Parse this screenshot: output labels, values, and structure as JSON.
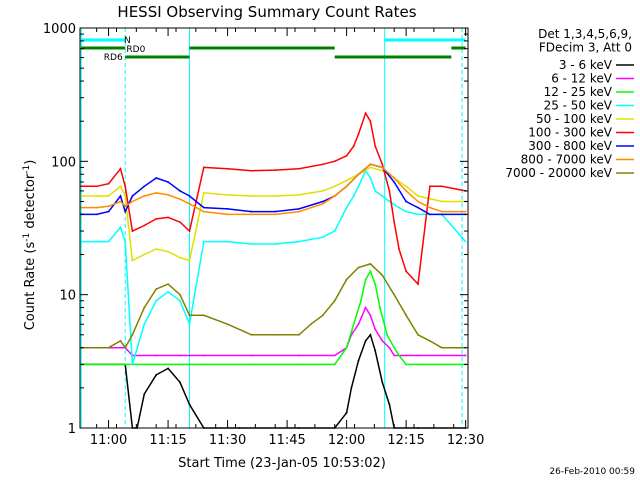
{
  "chart_data": {
    "type": "line",
    "title": "HESSI Observing Summary Count Rates",
    "xlabel": "Start Time (23-Jan-05 10:53:02)",
    "ylabel_main": "Count Rate (s",
    "ylabel_sup1": "-1",
    "ylabel_mid": " detector",
    "ylabel_sup2": "-1",
    "ylabel_end": ")",
    "footer_date": "26-Feb-2010 00:59",
    "y_scale": "log",
    "ylim": [
      1,
      1000
    ],
    "xlim_minutes": [
      10.88,
      12.51
    ],
    "x_ticks": [
      {
        "hour": 11.0,
        "label": "11:00"
      },
      {
        "hour": 11.25,
        "label": "11:15"
      },
      {
        "hour": 11.5,
        "label": "11:30"
      },
      {
        "hour": 11.75,
        "label": "11:45"
      },
      {
        "hour": 12.0,
        "label": "12:00"
      },
      {
        "hour": 12.25,
        "label": "12:15"
      },
      {
        "hour": 12.5,
        "label": "12:30"
      }
    ],
    "y_ticks": [
      {
        "value": 1,
        "label": "1"
      },
      {
        "value": 10,
        "label": "10"
      },
      {
        "value": 100,
        "label": "100"
      },
      {
        "value": 1000,
        "label": "1000"
      }
    ],
    "legend_header": [
      "Det 1,3,4,5,6,9,",
      "FDecim 3, Att 0"
    ],
    "series": [
      {
        "name": "3 - 6 keV",
        "color": "#000000",
        "x": [
          10.885,
          10.92,
          11.0,
          11.04,
          11.07,
          11.1,
          11.12,
          11.15,
          11.2,
          11.25,
          11.3,
          11.34,
          11.4,
          11.55,
          11.8,
          11.95,
          12.0,
          12.02,
          12.05,
          12.08,
          12.1,
          12.12,
          12.15,
          12.18,
          12.2,
          12.3,
          12.5
        ],
        "y": [
          3,
          3,
          3,
          3,
          3,
          1,
          1,
          1.8,
          2.5,
          2.8,
          2.2,
          1.5,
          1,
          1,
          1,
          1,
          1.3,
          2,
          3.2,
          4.5,
          5,
          3.8,
          2.2,
          1.5,
          1,
          1,
          1
        ]
      },
      {
        "name": "6 - 12 keV",
        "color": "#ff00ff",
        "x": [
          10.885,
          11.0,
          11.07,
          11.1,
          11.2,
          11.3,
          11.34,
          11.4,
          11.6,
          11.8,
          11.95,
          12.0,
          12.02,
          12.05,
          12.08,
          12.1,
          12.12,
          12.15,
          12.18,
          12.2,
          12.25,
          12.3,
          12.5
        ],
        "y": [
          4,
          4,
          4,
          3.5,
          3.5,
          3.5,
          3.5,
          3.5,
          3.5,
          3.5,
          3.5,
          4,
          5,
          6,
          8,
          7,
          5.5,
          4.5,
          4,
          3.5,
          3.5,
          3.5,
          3.5
        ]
      },
      {
        "name": "12 - 25 keV",
        "color": "#00ff00",
        "x": [
          10.885,
          11.0,
          11.07,
          11.1,
          11.15,
          11.2,
          11.25,
          11.3,
          11.34,
          11.4,
          11.6,
          11.8,
          11.9,
          11.95,
          12.0,
          12.03,
          12.06,
          12.08,
          12.1,
          12.12,
          12.14,
          12.17,
          12.2,
          12.22,
          12.25,
          12.3,
          12.5
        ],
        "y": [
          3,
          3,
          3,
          3,
          3,
          3,
          3,
          3,
          3,
          3,
          3,
          3,
          3,
          3,
          4,
          6,
          9,
          13,
          15,
          12,
          8,
          5,
          4,
          3.5,
          3,
          3,
          3
        ]
      },
      {
        "name": "25 - 50 keV",
        "color": "#00ffff",
        "x": [
          10.885,
          10.95,
          11.0,
          11.05,
          11.07,
          11.1,
          11.15,
          11.2,
          11.25,
          11.3,
          11.34,
          11.4,
          11.5,
          11.6,
          11.7,
          11.8,
          11.9,
          11.95,
          12.0,
          12.03,
          12.05,
          12.08,
          12.1,
          12.12,
          12.15,
          12.18,
          12.22,
          12.25,
          12.3,
          12.4,
          12.5
        ],
        "y": [
          25,
          25,
          25,
          32,
          25,
          3,
          6,
          9,
          10.5,
          9,
          6,
          25,
          25,
          24,
          24,
          25,
          27,
          30,
          45,
          55,
          65,
          85,
          75,
          60,
          55,
          50,
          45,
          42,
          40,
          40,
          25
        ]
      },
      {
        "name": "50 - 100 keV",
        "color": "#e0e000",
        "x": [
          10.885,
          10.95,
          11.0,
          11.05,
          11.07,
          11.1,
          11.15,
          11.2,
          11.25,
          11.3,
          11.34,
          11.4,
          11.5,
          11.6,
          11.7,
          11.8,
          11.9,
          11.95,
          12.0,
          12.05,
          12.1,
          12.15,
          12.2,
          12.25,
          12.3,
          12.4,
          12.5
        ],
        "y": [
          55,
          55,
          55,
          65,
          55,
          18,
          20,
          22,
          21,
          19,
          18,
          58,
          56,
          55,
          55,
          56,
          60,
          65,
          72,
          80,
          90,
          85,
          75,
          65,
          55,
          50,
          50
        ]
      },
      {
        "name": "100 - 300 keV",
        "color": "#ff0000",
        "x": [
          10.885,
          10.95,
          11.0,
          11.05,
          11.07,
          11.1,
          11.15,
          11.2,
          11.25,
          11.3,
          11.34,
          11.4,
          11.5,
          11.6,
          11.7,
          11.8,
          11.9,
          11.95,
          12.0,
          12.03,
          12.05,
          12.08,
          12.1,
          12.12,
          12.15,
          12.18,
          12.2,
          12.22,
          12.25,
          12.3,
          12.35,
          12.4,
          12.5
        ],
        "y": [
          65,
          65,
          68,
          88,
          65,
          30,
          33,
          37,
          38,
          35,
          30,
          90,
          88,
          85,
          86,
          88,
          95,
          100,
          110,
          130,
          160,
          230,
          200,
          130,
          95,
          60,
          35,
          22,
          15,
          12,
          65,
          65,
          60
        ]
      },
      {
        "name": "300 - 800 keV",
        "color": "#0000ff",
        "x": [
          10.885,
          10.95,
          11.0,
          11.05,
          11.07,
          11.1,
          11.15,
          11.2,
          11.25,
          11.3,
          11.34,
          11.4,
          11.5,
          11.6,
          11.7,
          11.8,
          11.9,
          11.95,
          12.0,
          12.05,
          12.1,
          12.15,
          12.2,
          12.25,
          12.3,
          12.35,
          12.4,
          12.5
        ],
        "y": [
          40,
          40,
          42,
          55,
          42,
          55,
          65,
          75,
          70,
          60,
          55,
          45,
          44,
          42,
          42,
          44,
          50,
          55,
          65,
          80,
          95,
          90,
          70,
          50,
          45,
          40,
          40,
          40
        ]
      },
      {
        "name": "800 - 7000 keV",
        "color": "#ff8c00",
        "x": [
          10.885,
          10.95,
          11.0,
          11.05,
          11.07,
          11.1,
          11.15,
          11.2,
          11.25,
          11.3,
          11.34,
          11.4,
          11.5,
          11.6,
          11.7,
          11.8,
          11.9,
          11.95,
          12.0,
          12.05,
          12.1,
          12.15,
          12.2,
          12.25,
          12.3,
          12.35,
          12.4,
          12.5
        ],
        "y": [
          45,
          45,
          46,
          50,
          46,
          50,
          55,
          58,
          56,
          52,
          48,
          42,
          40,
          40,
          40,
          42,
          48,
          55,
          65,
          80,
          95,
          90,
          75,
          60,
          50,
          45,
          42,
          42
        ]
      },
      {
        "name": "7000 - 20000 keV",
        "color": "#808000",
        "x": [
          10.885,
          10.95,
          11.0,
          11.05,
          11.07,
          11.1,
          11.15,
          11.2,
          11.25,
          11.3,
          11.34,
          11.4,
          11.5,
          11.6,
          11.7,
          11.8,
          11.85,
          11.9,
          11.95,
          12.0,
          12.05,
          12.1,
          12.15,
          12.2,
          12.25,
          12.3,
          12.35,
          12.4,
          12.5
        ],
        "y": [
          4,
          4,
          4,
          4.5,
          4,
          5,
          8,
          11,
          12,
          10,
          7,
          7,
          6,
          5,
          5,
          5,
          6,
          7,
          9,
          13,
          16,
          17,
          14,
          10,
          7,
          5,
          4.5,
          4,
          4
        ]
      }
    ],
    "annotations": {
      "flags": [
        {
          "label": "N",
          "color": "#00ffff",
          "segments": [
            [
              10.885,
              11.07
            ],
            [
              12.16,
              12.5
            ]
          ]
        },
        {
          "label": "RD0",
          "color": "#008000",
          "segments": [
            [
              10.885,
              11.07
            ],
            [
              11.34,
              11.95
            ],
            [
              12.44,
              12.5
            ]
          ]
        },
        {
          "label": "RD6",
          "color": "#008000",
          "segments": [
            [
              11.07,
              11.34
            ],
            [
              11.95,
              12.44
            ]
          ]
        }
      ],
      "vlines_solid": [
        10.885,
        11.34,
        12.16
      ],
      "vlines_dashed": [
        11.07,
        12.485
      ]
    }
  }
}
